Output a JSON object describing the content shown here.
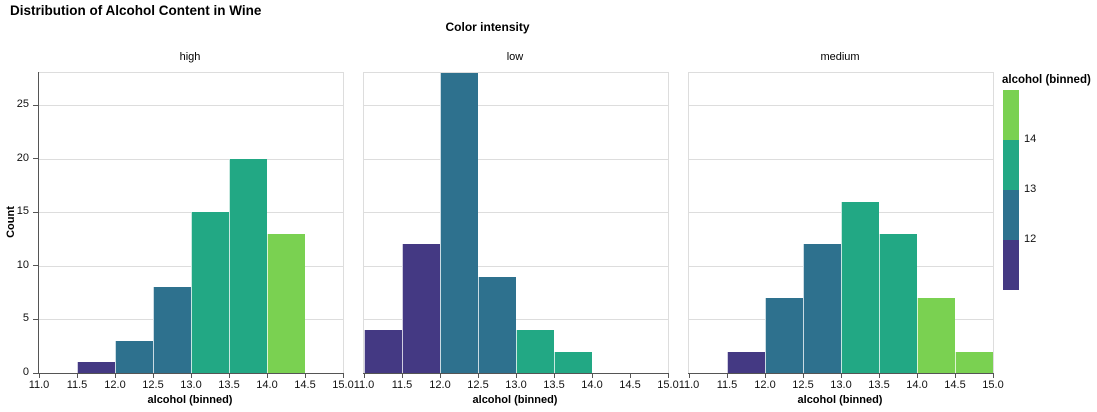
{
  "title": "Distribution of Alcohol Content in Wine",
  "header": {
    "title": "Color intensity"
  },
  "y_axis_title": "Count",
  "legend": {
    "title": "alcohol (binned)",
    "segments": [
      {
        "color": "#7ad151",
        "boundary_label": "14"
      },
      {
        "color": "#22a884",
        "boundary_label": "13"
      },
      {
        "color": "#2e718e",
        "boundary_label": "12"
      },
      {
        "color": "#443983",
        "boundary_label": ""
      }
    ]
  },
  "colors": {
    "bin_11_12": "#443983",
    "bin_12_13": "#2e718e",
    "bin_13_14": "#22a884",
    "bin_14_15": "#7ad151",
    "grid": "#dddddd",
    "axis": "#555555"
  },
  "chart_data": [
    {
      "type": "bar",
      "title": "high",
      "xlabel": "alcohol (binned)",
      "ylabel": "Count",
      "xlim": [
        11.0,
        15.0
      ],
      "ylim": [
        0,
        28
      ],
      "grid": true,
      "x_ticks": [
        11.0,
        11.5,
        12.0,
        12.5,
        13.0,
        13.5,
        14.0,
        14.5,
        15.0
      ],
      "x_tick_labels": [
        "11.0",
        "11.5",
        "12.0",
        "12.5",
        "13.0",
        "13.5",
        "14.0",
        "14.5",
        "15.0"
      ],
      "y_ticks": [
        0,
        5,
        10,
        15,
        20,
        25
      ],
      "y_tick_labels": [
        "0",
        "5",
        "10",
        "15",
        "20",
        "25"
      ],
      "bars": [
        {
          "bin_start": 11.5,
          "bin_end": 12.0,
          "count": 1,
          "color": "#443983"
        },
        {
          "bin_start": 12.0,
          "bin_end": 12.5,
          "count": 3,
          "color": "#2e718e"
        },
        {
          "bin_start": 12.5,
          "bin_end": 13.0,
          "count": 8,
          "color": "#2e718e"
        },
        {
          "bin_start": 13.0,
          "bin_end": 13.5,
          "count": 15,
          "color": "#22a884"
        },
        {
          "bin_start": 13.5,
          "bin_end": 14.0,
          "count": 20,
          "color": "#22a884"
        },
        {
          "bin_start": 14.0,
          "bin_end": 14.5,
          "count": 13,
          "color": "#7ad151"
        }
      ]
    },
    {
      "type": "bar",
      "title": "low",
      "xlabel": "alcohol (binned)",
      "ylabel": "Count",
      "xlim": [
        11.0,
        15.0
      ],
      "ylim": [
        0,
        28
      ],
      "grid": true,
      "x_ticks": [
        11.0,
        11.5,
        12.0,
        12.5,
        13.0,
        13.5,
        14.0,
        14.5,
        15.0
      ],
      "x_tick_labels": [
        "11.0",
        "11.5",
        "12.0",
        "12.5",
        "13.0",
        "13.5",
        "14.0",
        "14.5",
        "15.0"
      ],
      "y_ticks": [
        0,
        5,
        10,
        15,
        20,
        25
      ],
      "y_tick_labels": [
        "0",
        "5",
        "10",
        "15",
        "20",
        "25"
      ],
      "bars": [
        {
          "bin_start": 11.0,
          "bin_end": 11.5,
          "count": 4,
          "color": "#443983"
        },
        {
          "bin_start": 11.5,
          "bin_end": 12.0,
          "count": 12,
          "color": "#443983"
        },
        {
          "bin_start": 12.0,
          "bin_end": 12.5,
          "count": 28,
          "color": "#2e718e"
        },
        {
          "bin_start": 12.5,
          "bin_end": 13.0,
          "count": 9,
          "color": "#2e718e"
        },
        {
          "bin_start": 13.0,
          "bin_end": 13.5,
          "count": 4,
          "color": "#22a884"
        },
        {
          "bin_start": 13.5,
          "bin_end": 14.0,
          "count": 2,
          "color": "#22a884"
        }
      ]
    },
    {
      "type": "bar",
      "title": "medium",
      "xlabel": "alcohol (binned)",
      "ylabel": "Count",
      "xlim": [
        11.0,
        15.0
      ],
      "ylim": [
        0,
        28
      ],
      "grid": true,
      "x_ticks": [
        11.0,
        11.5,
        12.0,
        12.5,
        13.0,
        13.5,
        14.0,
        14.5,
        15.0
      ],
      "x_tick_labels": [
        "11.0",
        "11.5",
        "12.0",
        "12.5",
        "13.0",
        "13.5",
        "14.0",
        "14.5",
        "15.0"
      ],
      "y_ticks": [
        0,
        5,
        10,
        15,
        20,
        25
      ],
      "y_tick_labels": [
        "0",
        "5",
        "10",
        "15",
        "20",
        "25"
      ],
      "bars": [
        {
          "bin_start": 11.5,
          "bin_end": 12.0,
          "count": 2,
          "color": "#443983"
        },
        {
          "bin_start": 12.0,
          "bin_end": 12.5,
          "count": 7,
          "color": "#2e718e"
        },
        {
          "bin_start": 12.5,
          "bin_end": 13.0,
          "count": 12,
          "color": "#2e718e"
        },
        {
          "bin_start": 13.0,
          "bin_end": 13.5,
          "count": 16,
          "color": "#22a884"
        },
        {
          "bin_start": 13.5,
          "bin_end": 14.0,
          "count": 13,
          "color": "#22a884"
        },
        {
          "bin_start": 14.0,
          "bin_end": 14.5,
          "count": 7,
          "color": "#7ad151"
        },
        {
          "bin_start": 14.5,
          "bin_end": 15.0,
          "count": 2,
          "color": "#7ad151"
        }
      ]
    }
  ]
}
